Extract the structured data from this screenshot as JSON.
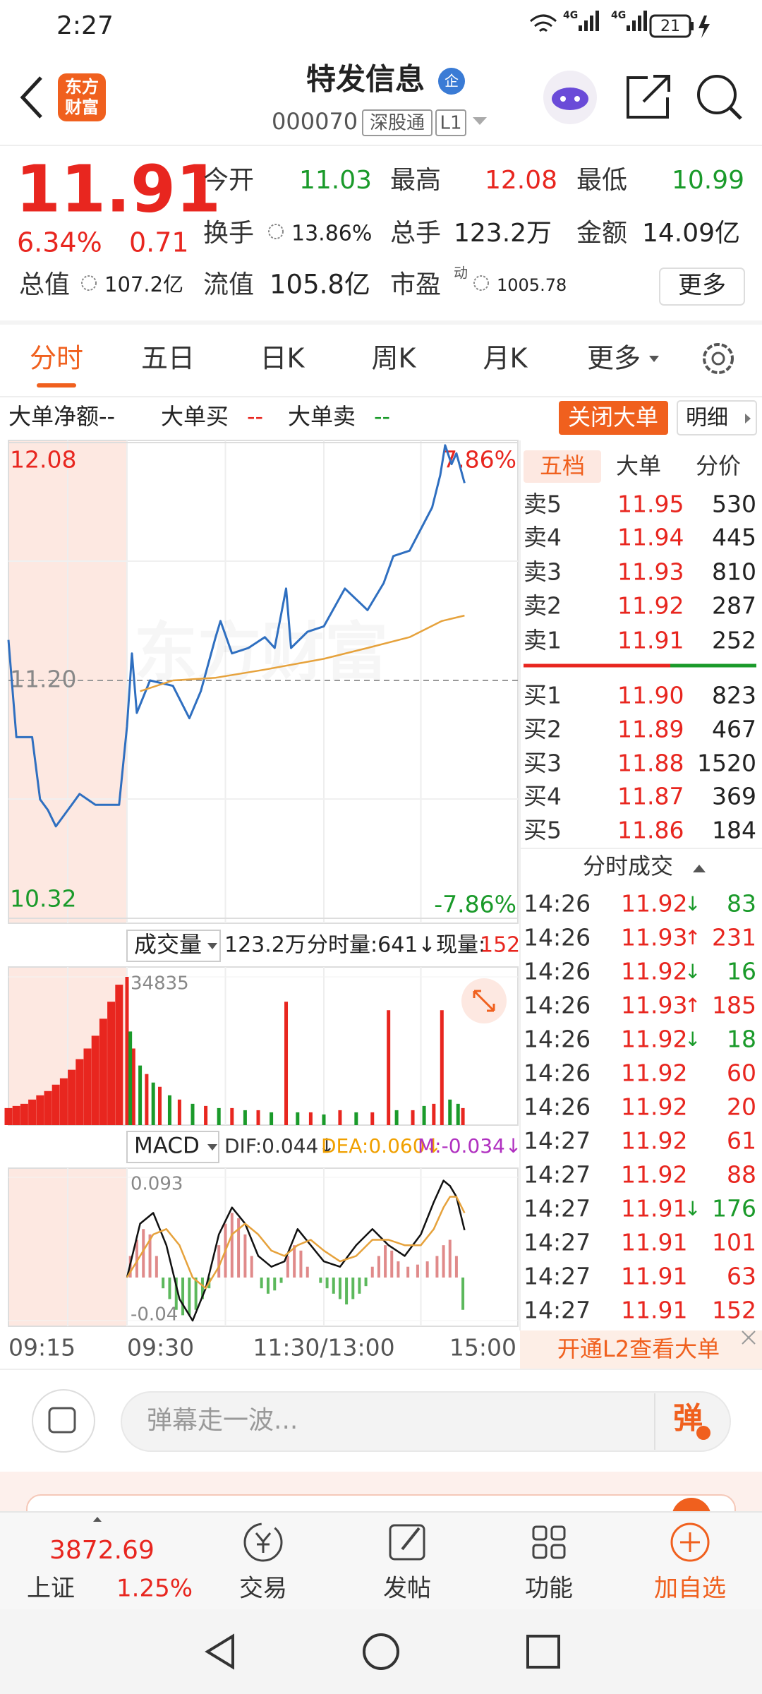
{
  "status": {
    "time": "2:27",
    "battery": "21",
    "net": [
      "4G",
      "4G"
    ]
  },
  "header": {
    "logo": [
      "东方",
      "财富"
    ],
    "title": "特发信息",
    "badge": "企",
    "code": "000070",
    "tags": [
      "深股通",
      "L1"
    ]
  },
  "quote": {
    "price": "11.91",
    "change_pct": "6.34%",
    "change": "0.71",
    "fields": [
      {
        "label": "今开",
        "value": "11.03"
      },
      {
        "label": "最高",
        "value": "12.08"
      },
      {
        "label": "最低",
        "value": "10.99"
      },
      {
        "label": "换手",
        "value": "13.86%"
      },
      {
        "label": "总手",
        "value": "123.2万"
      },
      {
        "label": "金额",
        "value": "14.09亿"
      },
      {
        "label": "总值",
        "value": "107.2亿"
      },
      {
        "label": "流值",
        "value": "105.8亿"
      },
      {
        "label": "市盈",
        "value": "1005.78",
        "sup": "动"
      }
    ],
    "more": "更多"
  },
  "tabs": [
    "分时",
    "五日",
    "日K",
    "周K",
    "月K",
    "更多"
  ],
  "big_order": {
    "items": [
      {
        "label": "大单净额",
        "value": "--"
      },
      {
        "label": "大单买",
        "value": "--"
      },
      {
        "label": "大单卖",
        "value": "--"
      }
    ],
    "close": "关闭大单",
    "detail": "明细"
  },
  "chart_data": [
    {
      "type": "line",
      "ylim": [
        10.32,
        12.08
      ],
      "yticks": [
        12.08,
        {
          "value": 11.2,
          "label": "11.20"
        },
        10.32
      ],
      "pct_labels": [
        "7.86%",
        "-7.86%"
      ],
      "watermark": "东方财富",
      "xlim": [
        -15,
        240
      ],
      "series": [
        {
          "color": "#2f6fc0",
          "x": [
            -15,
            -14,
            -13,
            -12,
            -11,
            -10,
            -9,
            -8,
            -7,
            -6,
            -5,
            -4,
            -3,
            -2,
            -1,
            0,
            3,
            6,
            14,
            28,
            38,
            45,
            54,
            57,
            64,
            74,
            84,
            90,
            97,
            100,
            110,
            120,
            133,
            147,
            157,
            163,
            173,
            180,
            187,
            192,
            195,
            199,
            202,
            207
          ],
          "values": [
            11.35,
            10.99,
            10.99,
            10.99,
            10.76,
            10.72,
            10.66,
            10.7,
            10.74,
            10.78,
            10.76,
            10.74,
            10.74,
            10.74,
            10.74,
            11.03,
            11.3,
            11.08,
            11.2,
            11.18,
            11.06,
            11.16,
            11.36,
            11.42,
            11.3,
            11.32,
            11.36,
            11.32,
            11.54,
            11.32,
            11.38,
            11.4,
            11.54,
            11.46,
            11.56,
            11.66,
            11.68,
            11.76,
            11.84,
            11.96,
            12.07,
            12.0,
            12.04,
            11.93
          ]
        },
        {
          "color": "#e6a23c",
          "x": [
            8,
            28,
            54,
            84,
            120,
            147,
            173,
            193,
            207
          ],
          "values": [
            11.16,
            11.2,
            11.21,
            11.24,
            11.28,
            11.32,
            11.36,
            11.42,
            11.44
          ]
        }
      ]
    },
    {
      "type": "bar",
      "title": "成交量",
      "total": "123.2万",
      "period_vol": "分时量:641↓",
      "now_label": "现量:",
      "now": "152",
      "ylim": [
        0,
        34835
      ],
      "yticks": [
        34835
      ],
      "series": [
        {
          "color": "#e8261f",
          "x": [
            -15,
            -14,
            -13,
            -12,
            -11,
            -10,
            -9,
            -8,
            -7,
            -6,
            -5,
            -4,
            -3,
            -2,
            -1,
            0,
            4,
            12,
            20,
            32,
            48,
            64,
            80,
            97,
            112,
            130,
            150,
            160,
            175,
            188,
            193,
            206
          ],
          "values": [
            4000,
            4500,
            5000,
            6000,
            7000,
            8000,
            9500,
            11000,
            13000,
            15500,
            18000,
            21000,
            25000,
            29000,
            33000,
            34835,
            18000,
            12000,
            9000,
            6000,
            4500,
            4000,
            3500,
            29000,
            3000,
            3500,
            3000,
            27000,
            3500,
            5000,
            27000,
            4000
          ]
        },
        {
          "color": "#1a9a2a",
          "x": [
            2,
            8,
            16,
            26,
            40,
            56,
            72,
            88,
            104,
            120,
            140,
            165,
            182,
            198,
            203
          ],
          "values": [
            22000,
            14000,
            10000,
            7000,
            5000,
            4000,
            3500,
            3000,
            3000,
            2500,
            3000,
            3500,
            4500,
            6000,
            5000
          ]
        }
      ]
    },
    {
      "type": "macd",
      "title": "MACD",
      "indicators": [
        "DIF:0.044↓",
        "DEA:0.060↓",
        "M:-0.034↓"
      ],
      "ylim": [
        -0.04,
        0.093
      ],
      "yticks": [
        0.093,
        -0.04
      ],
      "series": [
        {
          "type": "bar",
          "color": "#e08a8a",
          "x": [
            2,
            6,
            10,
            14,
            18,
            56,
            60,
            64,
            68,
            72,
            76,
            98,
            102,
            106,
            110,
            150,
            154,
            158,
            162,
            166,
            172,
            178,
            184,
            190,
            194,
            198,
            202
          ],
          "values": [
            0.02,
            0.035,
            0.045,
            0.04,
            0.02,
            0.03,
            0.05,
            0.06,
            0.055,
            0.04,
            0.02,
            0.02,
            0.03,
            0.025,
            0.01,
            0.01,
            0.02,
            0.03,
            0.025,
            0.015,
            0.01,
            0.012,
            0.015,
            0.02,
            0.03,
            0.035,
            0.02
          ]
        },
        {
          "type": "bar",
          "color": "#5cb85c",
          "x": [
            22,
            26,
            30,
            34,
            38,
            42,
            46,
            50,
            82,
            86,
            90,
            94,
            118,
            122,
            126,
            130,
            134,
            138,
            142,
            146,
            206
          ],
          "values": [
            -0.01,
            -0.02,
            -0.03,
            -0.035,
            -0.035,
            -0.03,
            -0.02,
            -0.01,
            -0.01,
            -0.015,
            -0.012,
            -0.005,
            -0.005,
            -0.01,
            -0.015,
            -0.02,
            -0.025,
            -0.02,
            -0.015,
            -0.008,
            -0.03
          ]
        },
        {
          "type": "line",
          "color": "#111111",
          "x": [
            0,
            8,
            16,
            24,
            32,
            40,
            48,
            56,
            64,
            72,
            80,
            88,
            96,
            104,
            112,
            120,
            130,
            140,
            150,
            160,
            170,
            180,
            188,
            194,
            198,
            202,
            207
          ],
          "values": [
            0.0,
            0.05,
            0.06,
            0.03,
            -0.02,
            -0.04,
            -0.01,
            0.04,
            0.065,
            0.05,
            0.02,
            0.01,
            0.015,
            0.045,
            0.03,
            0.015,
            0.01,
            0.03,
            0.045,
            0.03,
            0.02,
            0.04,
            0.07,
            0.09,
            0.085,
            0.075,
            0.044
          ]
        },
        {
          "type": "line",
          "color": "#e6a23c",
          "x": [
            0,
            8,
            16,
            24,
            32,
            40,
            48,
            56,
            64,
            72,
            80,
            88,
            96,
            104,
            112,
            120,
            130,
            140,
            150,
            160,
            170,
            180,
            188,
            194,
            198,
            202,
            207
          ],
          "values": [
            0.0,
            0.02,
            0.04,
            0.045,
            0.03,
            0.0,
            -0.01,
            0.01,
            0.04,
            0.05,
            0.04,
            0.025,
            0.02,
            0.03,
            0.035,
            0.025,
            0.015,
            0.02,
            0.035,
            0.035,
            0.03,
            0.03,
            0.045,
            0.065,
            0.075,
            0.075,
            0.06
          ]
        }
      ]
    }
  ],
  "time_labels": [
    "09:15",
    "09:30",
    "11:30/13:00",
    "15:00"
  ],
  "order_book": {
    "tabs": [
      "五档",
      "大单",
      "分价"
    ],
    "sells": [
      {
        "label": "卖5",
        "price": "11.95",
        "vol": "530"
      },
      {
        "label": "卖4",
        "price": "11.94",
        "vol": "445"
      },
      {
        "label": "卖3",
        "price": "11.93",
        "vol": "810"
      },
      {
        "label": "卖2",
        "price": "11.92",
        "vol": "287"
      },
      {
        "label": "卖1",
        "price": "11.91",
        "vol": "252"
      }
    ],
    "buys": [
      {
        "label": "买1",
        "price": "11.90",
        "vol": "823"
      },
      {
        "label": "买2",
        "price": "11.89",
        "vol": "467"
      },
      {
        "label": "买3",
        "price": "11.88",
        "vol": "1520"
      },
      {
        "label": "买4",
        "price": "11.87",
        "vol": "369"
      },
      {
        "label": "买5",
        "price": "11.86",
        "vol": "184"
      }
    ]
  },
  "trades": {
    "title": "分时成交",
    "rows": [
      {
        "time": "14:26",
        "price": "11.92",
        "dir": "↓",
        "vol": "83"
      },
      {
        "time": "14:26",
        "price": "11.93",
        "dir": "↑",
        "vol": "231"
      },
      {
        "time": "14:26",
        "price": "11.92",
        "dir": "↓",
        "vol": "16"
      },
      {
        "time": "14:26",
        "price": "11.93",
        "dir": "↑",
        "vol": "185"
      },
      {
        "time": "14:26",
        "price": "11.92",
        "dir": "↓",
        "vol": "18"
      },
      {
        "time": "14:26",
        "price": "11.92",
        "dir": "",
        "vol": "60"
      },
      {
        "time": "14:26",
        "price": "11.92",
        "dir": "",
        "vol": "20"
      },
      {
        "time": "14:27",
        "price": "11.92",
        "dir": "",
        "vol": "61"
      },
      {
        "time": "14:27",
        "price": "11.92",
        "dir": "",
        "vol": "88"
      },
      {
        "time": "14:27",
        "price": "11.91",
        "dir": "↓",
        "vol": "176"
      },
      {
        "time": "14:27",
        "price": "11.91",
        "dir": "",
        "vol": "101"
      },
      {
        "time": "14:27",
        "price": "11.91",
        "dir": "",
        "vol": "63"
      },
      {
        "time": "14:27",
        "price": "11.91",
        "dir": "",
        "vol": "152"
      }
    ]
  },
  "l2_banner": "开通L2查看大单",
  "comment": {
    "placeholder": "弹幕走一波...",
    "button": "弹"
  },
  "bottom_nav": {
    "index_value": "3872.69",
    "index_name": "上证",
    "index_pct": "1.25%",
    "items": [
      "交易",
      "发帖",
      "功能",
      "加自选"
    ]
  }
}
